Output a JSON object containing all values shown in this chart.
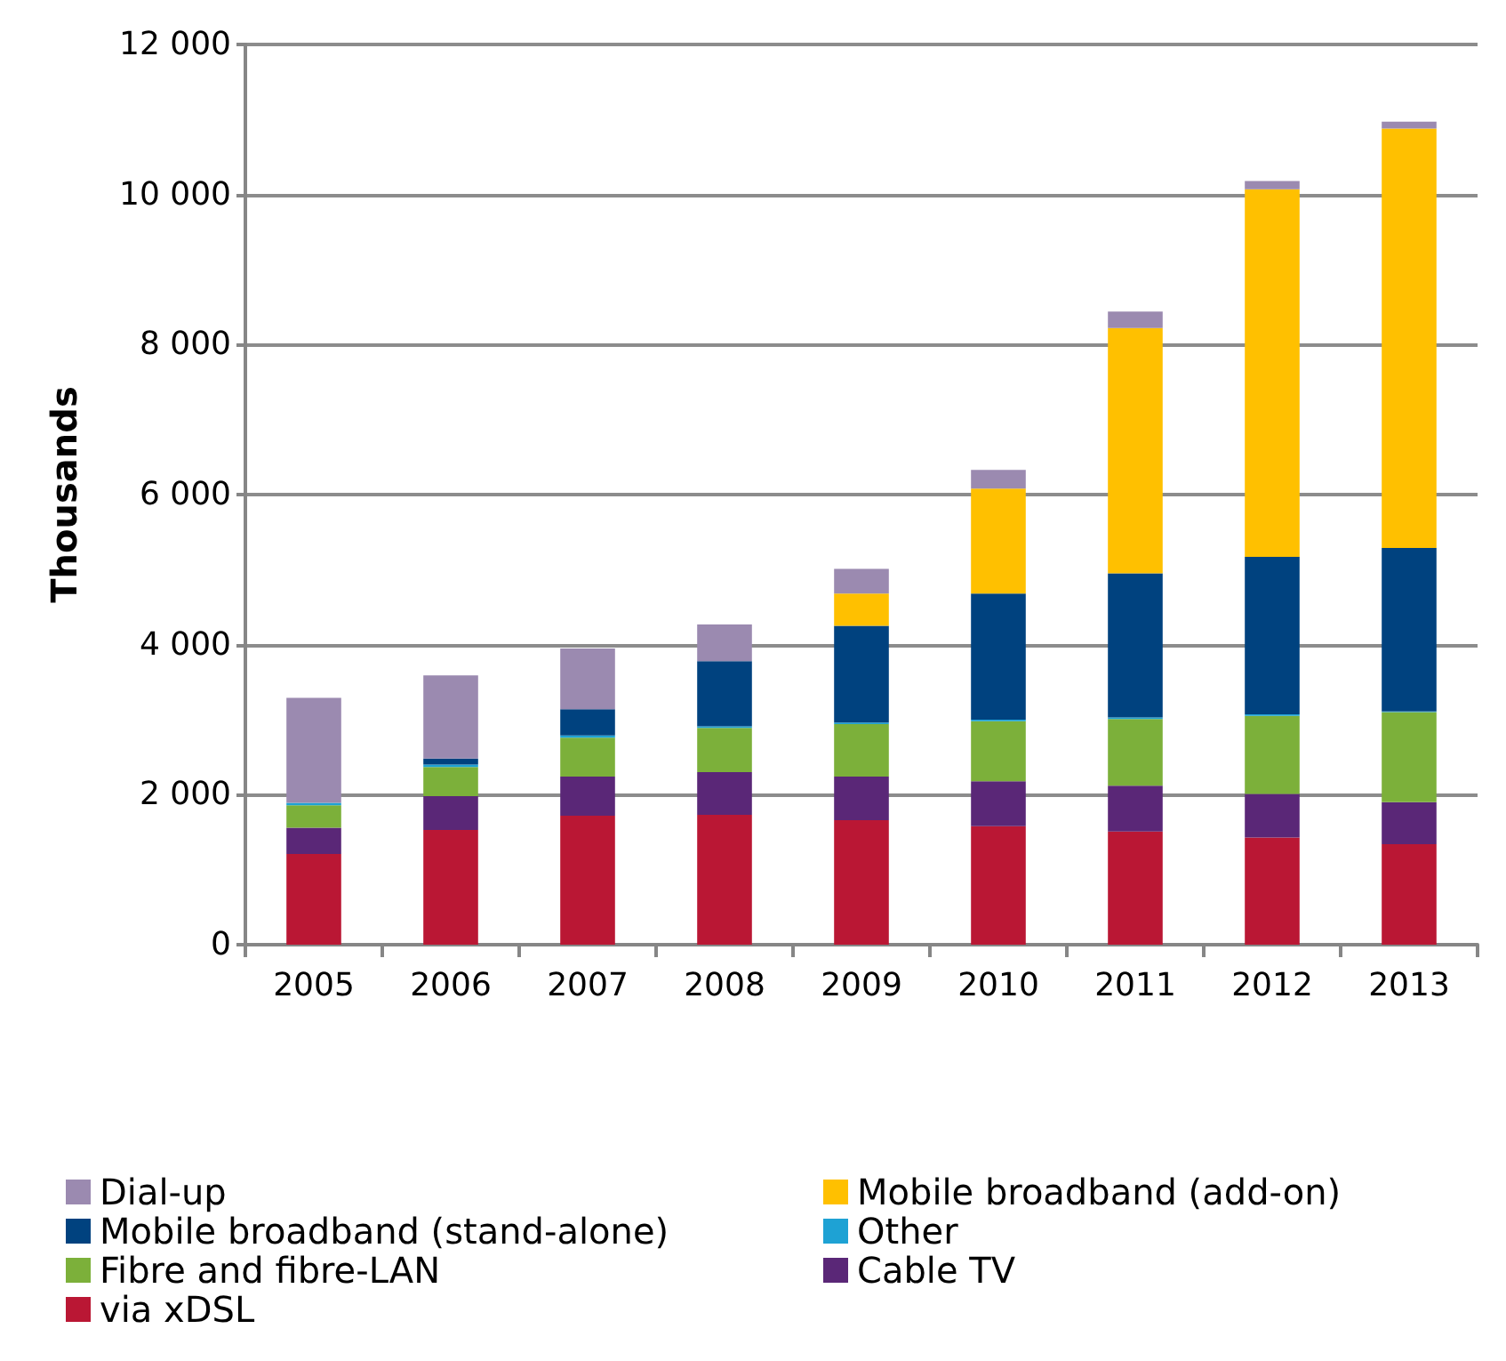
{
  "chart_data": {
    "type": "bar",
    "stacked": true,
    "ylabel": "Thousands",
    "categories": [
      "2005",
      "2006",
      "2007",
      "2008",
      "2009",
      "2010",
      "2011",
      "2012",
      "2013"
    ],
    "ylim": [
      0,
      12000
    ],
    "yticks": [
      0,
      {
        "value": 2000,
        "label": "2 000"
      },
      {
        "value": 4000,
        "label": "4 000"
      },
      {
        "value": 6000,
        "label": "6 000"
      },
      {
        "value": 8000,
        "label": "8 000"
      },
      {
        "value": 10000,
        "label": "10 000"
      },
      {
        "value": 12000,
        "label": "12 000"
      }
    ],
    "grid": "y",
    "legend": "bottom",
    "series": [
      {
        "name": "via xDSL",
        "color": "#ba1734",
        "values": [
          1210,
          1530,
          1720,
          1730,
          1660,
          1580,
          1510,
          1430,
          1340
        ]
      },
      {
        "name": "Cable TV",
        "color": "#5a2777",
        "values": [
          350,
          450,
          520,
          570,
          580,
          600,
          610,
          580,
          560
        ]
      },
      {
        "name": "Fibre and fibre-LAN",
        "color": "#7cb03a",
        "values": [
          300,
          390,
          520,
          590,
          700,
          800,
          890,
          1040,
          1200
        ]
      },
      {
        "name": "Other",
        "color": "#1ea2d4",
        "values": [
          30,
          30,
          30,
          20,
          20,
          20,
          20,
          20,
          10
        ]
      },
      {
        "name": "Mobile broadband (stand-alone)",
        "color": "#00427f",
        "values": [
          0,
          80,
          350,
          870,
          1290,
          1680,
          1920,
          2100,
          2180
        ]
      },
      {
        "name": "Mobile broadband (add-on)",
        "color": "#ffc000",
        "values": [
          0,
          0,
          0,
          0,
          430,
          1400,
          3270,
          4900,
          5590
        ]
      },
      {
        "name": "Dial-up",
        "color": "#9b8ab0",
        "values": [
          1400,
          1110,
          810,
          490,
          330,
          250,
          220,
          110,
          90
        ]
      }
    ]
  }
}
